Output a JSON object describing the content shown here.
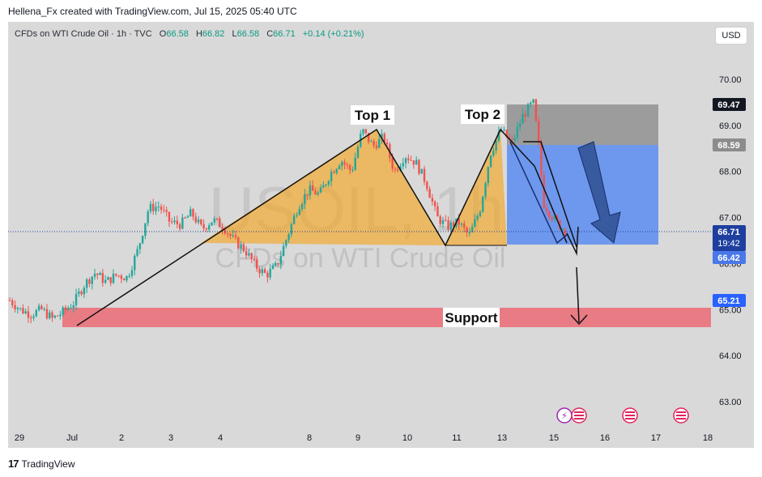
{
  "header": {
    "text": "Hellena_Fx created with TradingView.com, Jul 15, 2025 05:40 UTC"
  },
  "symbol": {
    "name": "CFDs on WTI Crude Oil · 1h · TVC",
    "open_label": "O",
    "open": "66.58",
    "high_label": "H",
    "high": "66.82",
    "low_label": "L",
    "low": "66.58",
    "close_label": "C",
    "close": "66.71",
    "change": "+0.14 (+0.21%)"
  },
  "currency_button": "USD",
  "watermark": {
    "ticker": "USOIL, 1h",
    "description": "CFDs on WTI Crude Oil"
  },
  "annotations": {
    "top1": "Top 1",
    "top2": "Top 2",
    "support": "Support"
  },
  "price_labels": {
    "target_top": "69.47",
    "stop_level": "68.59",
    "last_price": "66.71",
    "countdown": "19:42",
    "entry_level": "66.42",
    "support_level": "65.21"
  },
  "footer": {
    "logo": "17",
    "brand": "TradingView"
  },
  "colors": {
    "bullish": "#26a69a",
    "bearish": "#ef5350",
    "pattern_fill": "#f5a623",
    "support_zone": "#eb6a74",
    "target_zone": "#5a8cf0",
    "stop_zone": "#8c8c8c",
    "last_price": "#1e3f9e"
  },
  "chart_data": {
    "type": "candlestick",
    "y_axis": {
      "min": 62.5,
      "max": 70.5,
      "ticks": [
        "63.00",
        "64.00",
        "65.00",
        "66.00",
        "67.00",
        "68.00",
        "69.00",
        "70.00"
      ]
    },
    "x_axis": {
      "ticks": [
        "29",
        "Jul",
        "2",
        "3",
        "4",
        "8",
        "9",
        "10",
        "11",
        "13",
        "15",
        "16",
        "17",
        "18"
      ]
    },
    "price_path": [
      [
        0,
        65.2
      ],
      [
        2,
        65.0
      ],
      [
        4,
        64.9
      ],
      [
        6,
        65.0
      ],
      [
        8,
        64.8
      ],
      [
        10,
        64.95
      ],
      [
        12,
        65.15
      ],
      [
        14,
        65.55
      ],
      [
        16,
        65.8
      ],
      [
        18,
        65.6
      ],
      [
        20,
        65.75
      ],
      [
        22,
        65.7
      ],
      [
        24,
        66.3
      ],
      [
        26,
        67.2
      ],
      [
        28,
        67.25
      ],
      [
        30,
        66.9
      ],
      [
        32,
        66.85
      ],
      [
        34,
        67.1
      ],
      [
        36,
        66.75
      ],
      [
        38,
        66.95
      ],
      [
        40,
        66.8
      ],
      [
        42,
        66.5
      ],
      [
        44,
        66.3
      ],
      [
        46,
        65.95
      ],
      [
        48,
        65.75
      ],
      [
        50,
        65.95
      ],
      [
        52,
        66.6
      ],
      [
        54,
        67.25
      ],
      [
        56,
        67.6
      ],
      [
        58,
        67.5
      ],
      [
        60,
        67.95
      ],
      [
        62,
        68.25
      ],
      [
        64,
        68.0
      ],
      [
        66,
        68.9
      ],
      [
        68,
        68.55
      ],
      [
        70,
        68.75
      ],
      [
        72,
        68.0
      ],
      [
        74,
        68.35
      ],
      [
        76,
        68.2
      ],
      [
        78,
        67.75
      ],
      [
        80,
        67.0
      ],
      [
        82,
        66.8
      ],
      [
        84,
        66.9
      ],
      [
        86,
        66.6
      ],
      [
        88,
        67.15
      ],
      [
        90,
        68.4
      ],
      [
        92,
        68.9
      ],
      [
        94,
        68.6
      ],
      [
        96,
        69.2
      ],
      [
        98,
        69.5
      ],
      [
        99,
        68.6
      ],
      [
        100,
        67.3
      ],
      [
        102,
        66.95
      ],
      [
        104,
        66.71
      ]
    ],
    "events": [
      "Jul 14",
      "Jul 15",
      "Jul 16",
      "Jul 17"
    ]
  }
}
